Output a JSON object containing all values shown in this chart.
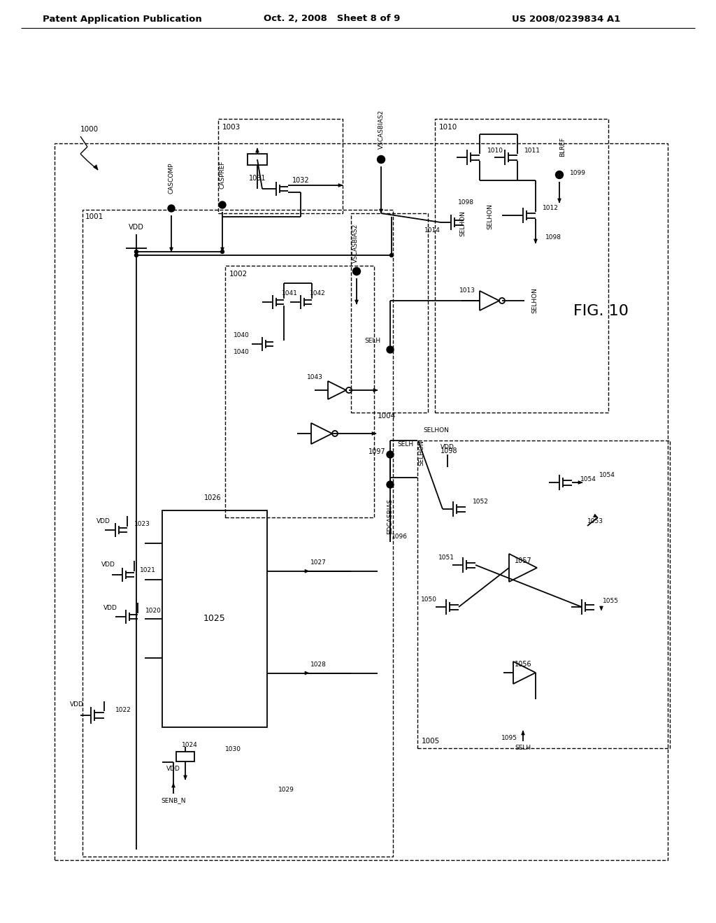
{
  "bg_color": "#ffffff",
  "header_left": "Patent Application Publication",
  "header_center": "Oct. 2, 2008   Sheet 8 of 9",
  "header_right": "US 2008/0239834 A1",
  "fig_label": "FIG. 10",
  "line_color": "#000000",
  "text_color": "#000000",
  "lw": 1.3
}
